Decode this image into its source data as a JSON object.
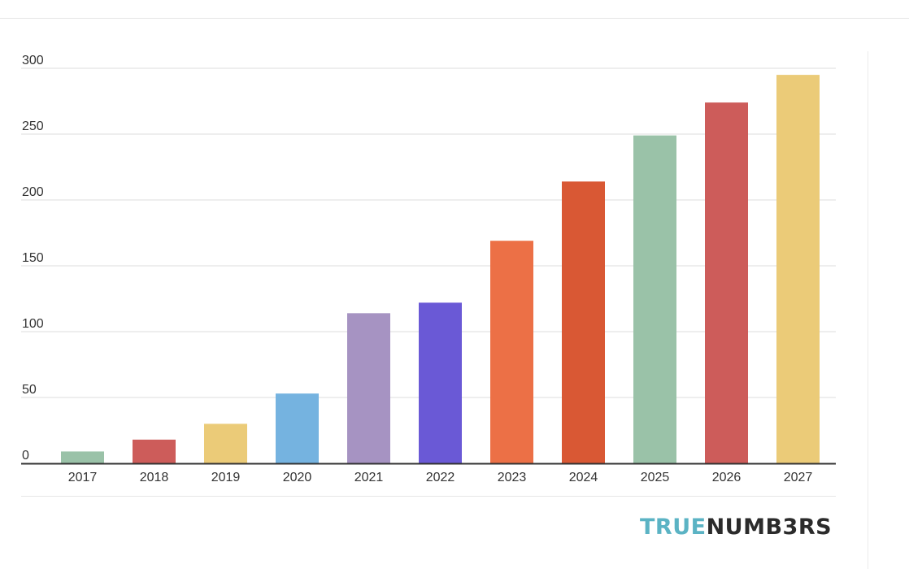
{
  "chart_data": {
    "type": "bar",
    "categories": [
      "2017",
      "2018",
      "2019",
      "2020",
      "2021",
      "2022",
      "2023",
      "2024",
      "2025",
      "2026",
      "2027"
    ],
    "values": [
      9,
      18,
      30,
      53,
      114,
      122,
      169,
      214,
      249,
      274,
      295
    ],
    "colors": [
      "#9ac2a8",
      "#cd5c5a",
      "#ebcb78",
      "#75b3e0",
      "#a693c2",
      "#6a59d6",
      "#ec7046",
      "#d95834",
      "#9ac2a8",
      "#cd5c5a",
      "#ebcb78"
    ],
    "ylim": [
      0,
      300
    ],
    "yticks": [
      "0",
      "50",
      "100",
      "150",
      "200",
      "250",
      "300"
    ],
    "title": "",
    "xlabel": "",
    "ylabel": "",
    "grid": true,
    "legend": "none"
  },
  "branding": {
    "part1": "TRUE",
    "part2": "NUMB3RS",
    "color1": "#5bb3c4",
    "color2": "#2b2b2b"
  }
}
